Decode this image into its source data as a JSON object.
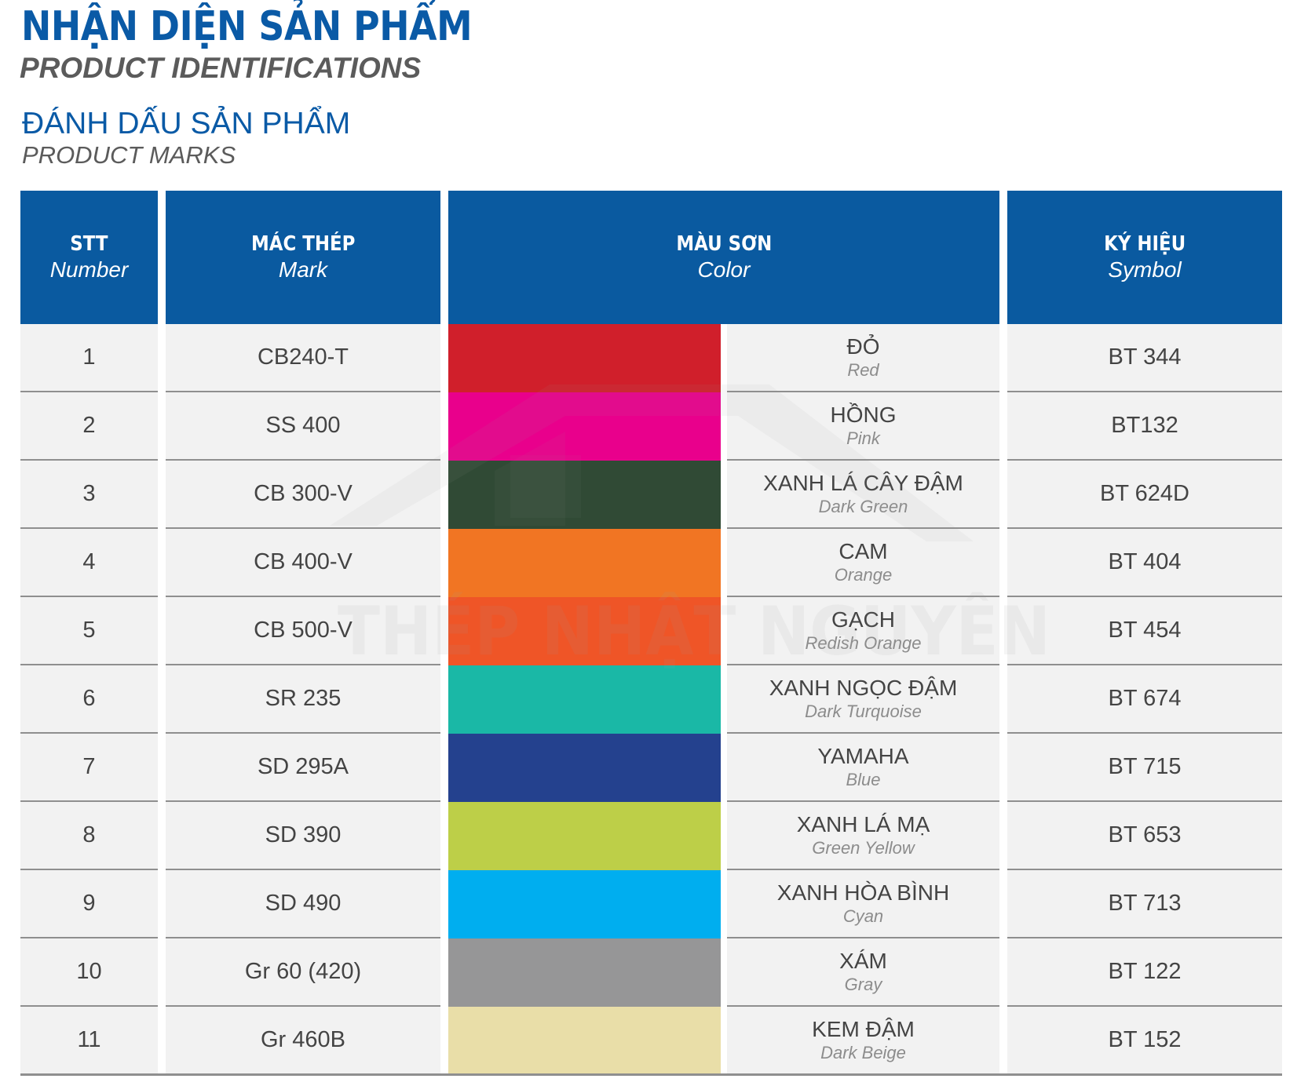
{
  "header": {
    "title_vn": "NHẬN DIỆN SẢN PHẨM",
    "title_en": "PRODUCT IDENTIFICATIONS",
    "subtitle_vn": "ĐÁNH DẤU SẢN PHẨM",
    "subtitle_en": "PRODUCT MARKS"
  },
  "table": {
    "columns": [
      {
        "vn": "STT",
        "en": "Number"
      },
      {
        "vn": "MÁC THÉP",
        "en": "Mark"
      },
      {
        "vn": "MÀU SƠN",
        "en": "Color"
      },
      {
        "vn": "KÝ HIỆU",
        "en": "Symbol"
      }
    ],
    "rows": [
      {
        "number": "1",
        "mark": "CB240-T",
        "swatch": "#d01f2b",
        "color_vn": "ĐỎ",
        "color_en": "Red",
        "symbol": "BT 344"
      },
      {
        "number": "2",
        "mark": "SS 400",
        "swatch": "#e9008c",
        "color_vn": "HỒNG",
        "color_en": "Pink",
        "symbol": "BT132"
      },
      {
        "number": "3",
        "mark": "CB 300-V",
        "swatch": "#304a35",
        "color_vn": "XANH LÁ CÂY ĐẬM",
        "color_en": "Dark Green",
        "symbol": "BT 624D"
      },
      {
        "number": "4",
        "mark": "CB 400-V",
        "swatch": "#f17523",
        "color_vn": "CAM",
        "color_en": "Orange",
        "symbol": "BT 404"
      },
      {
        "number": "5",
        "mark": "CB 500-V",
        "swatch": "#ef5527",
        "color_vn": "GẠCH",
        "color_en": "Redish Orange",
        "symbol": "BT 454"
      },
      {
        "number": "6",
        "mark": "SR 235",
        "swatch": "#1ab8a6",
        "color_vn": "XANH NGỌC ĐẬM",
        "color_en": "Dark Turquoise",
        "symbol": "BT 674"
      },
      {
        "number": "7",
        "mark": "SD 295A",
        "swatch": "#24418e",
        "color_vn": "YAMAHA",
        "color_en": "Blue",
        "symbol": "BT 715"
      },
      {
        "number": "8",
        "mark": "SD 390",
        "swatch": "#bdcf48",
        "color_vn": "XANH LÁ MẠ",
        "color_en": "Green Yellow",
        "symbol": "BT 653"
      },
      {
        "number": "9",
        "mark": "SD 490",
        "swatch": "#00aeef",
        "color_vn": "XANH HÒA BÌNH",
        "color_en": "Cyan",
        "symbol": "BT 713"
      },
      {
        "number": "10",
        "mark": "Gr 60 (420)",
        "swatch": "#969697",
        "color_vn": "XÁM",
        "color_en": "Gray",
        "symbol": "BT 122"
      },
      {
        "number": "11",
        "mark": "Gr 460B",
        "swatch": "#e9dea8",
        "color_vn": "KEM ĐẬM",
        "color_en": "Dark Beige",
        "symbol": "BT 152"
      }
    ]
  },
  "watermark": {
    "text": "THÉP NHẬT NGUYÊN",
    "icon": "house-roof-logo"
  },
  "colors": {
    "brand_blue": "#0a5aa6",
    "header_blue": "#0a5aa0",
    "row_bg": "#f2f2f2",
    "rule": "#8f8f8f"
  }
}
